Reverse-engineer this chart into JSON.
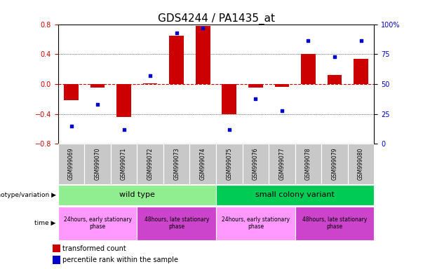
{
  "title": "GDS4244 / PA1435_at",
  "samples": [
    "GSM999069",
    "GSM999070",
    "GSM999071",
    "GSM999072",
    "GSM999073",
    "GSM999074",
    "GSM999075",
    "GSM999076",
    "GSM999077",
    "GSM999078",
    "GSM999079",
    "GSM999080"
  ],
  "bar_values": [
    -0.22,
    -0.05,
    -0.44,
    0.01,
    0.65,
    0.78,
    -0.4,
    -0.05,
    -0.04,
    0.4,
    0.12,
    0.34
  ],
  "dot_values": [
    15,
    33,
    12,
    57,
    93,
    97,
    12,
    38,
    28,
    86,
    73,
    86
  ],
  "ylim_left": [
    -0.8,
    0.8
  ],
  "ylim_right": [
    0,
    100
  ],
  "yticks_left": [
    -0.8,
    -0.4,
    0,
    0.4,
    0.8
  ],
  "yticks_right": [
    0,
    25,
    50,
    75,
    100
  ],
  "bar_color": "#cc0000",
  "dot_color": "#0000cc",
  "zero_line_color": "#cc0000",
  "bg_plot": "white",
  "bg_sample_row": "#c8c8c8",
  "genotype_groups": [
    {
      "label": "wild type",
      "start": 0,
      "end": 6,
      "color": "#90ee90"
    },
    {
      "label": "small colony variant",
      "start": 6,
      "end": 12,
      "color": "#00cc55"
    }
  ],
  "time_groups": [
    {
      "label": "24hours, early stationary\nphase",
      "start": 0,
      "end": 3,
      "color": "#ff99ff"
    },
    {
      "label": "48hours, late stationary\nphase",
      "start": 3,
      "end": 6,
      "color": "#cc44cc"
    },
    {
      "label": "24hours, early stationary\nphase",
      "start": 6,
      "end": 9,
      "color": "#ff99ff"
    },
    {
      "label": "48hours, late stationary\nphase",
      "start": 9,
      "end": 12,
      "color": "#cc44cc"
    }
  ],
  "legend_bar_label": "transformed count",
  "legend_dot_label": "percentile rank within the sample",
  "title_fontsize": 11,
  "tick_fontsize": 7,
  "label_fontsize": 7
}
